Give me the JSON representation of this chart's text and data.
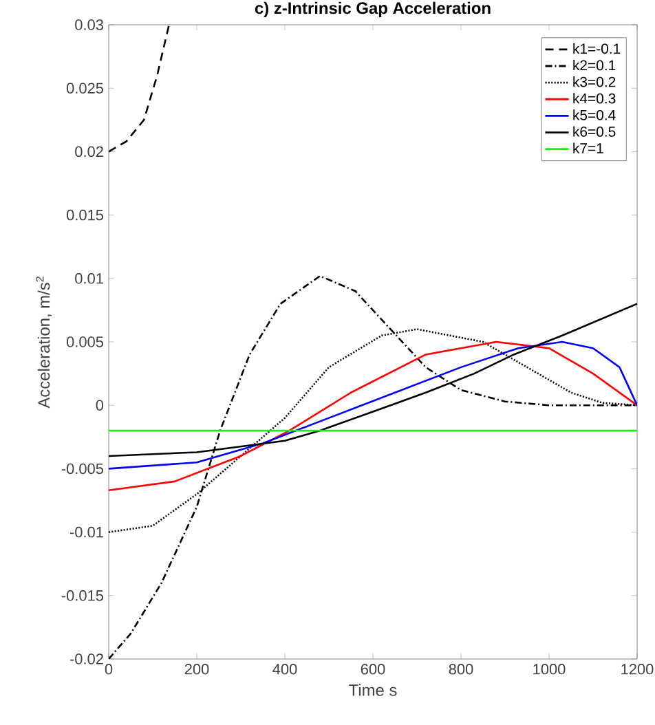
{
  "chart_data": {
    "type": "line",
    "title": "c) z-Intrinsic Gap Acceleration",
    "xlabel": "Time s",
    "ylabel": "Acceleration, m/s$^{2}$",
    "xlim": [
      0,
      1200
    ],
    "ylim": [
      -0.02,
      0.03
    ],
    "xticks": [
      0,
      200,
      400,
      600,
      800,
      1000,
      1200
    ],
    "yticks": [
      -0.02,
      -0.015,
      -0.01,
      -0.005,
      0,
      0.005,
      0.01,
      0.015,
      0.02,
      0.025,
      0.03
    ],
    "legend": "top right",
    "grid": false,
    "marker": "none",
    "series": [
      {
        "name": "k1=-0.1",
        "color": "#000000",
        "line_style": "dashed",
        "x": [
          0,
          40,
          80,
          110,
          137
        ],
        "values": [
          0.02,
          0.0208,
          0.0225,
          0.026,
          0.03
        ]
      },
      {
        "name": "k2=0.1",
        "color": "#000000",
        "line_style": "dashdot",
        "x": [
          0,
          50,
          120,
          200,
          253,
          320,
          390,
          480,
          560,
          640,
          720,
          800,
          900,
          1000,
          1200
        ],
        "values": [
          -0.02,
          -0.018,
          -0.014,
          -0.008,
          -0.002,
          0.004,
          0.008,
          0.0102,
          0.009,
          0.006,
          0.003,
          0.0012,
          0.0003,
          0,
          0
        ]
      },
      {
        "name": "k3=0.2",
        "color": "#000000",
        "line_style": "dotted",
        "x": [
          0,
          100,
          200,
          300,
          400,
          500,
          620,
          700,
          850,
          950,
          1050,
          1120,
          1200
        ],
        "values": [
          -0.01,
          -0.0095,
          -0.007,
          -0.004,
          -0.001,
          0.003,
          0.0055,
          0.006,
          0.005,
          0.003,
          0.001,
          0.0002,
          0
        ]
      },
      {
        "name": "k4=0.3",
        "color": "#ff0000",
        "line_style": "solid",
        "x": [
          0,
          150,
          300,
          410,
          550,
          720,
          880,
          1000,
          1100,
          1200
        ],
        "values": [
          -0.0067,
          -0.006,
          -0.004,
          -0.002,
          0.001,
          0.004,
          0.005,
          0.0045,
          0.0025,
          0
        ]
      },
      {
        "name": "k5=0.4",
        "color": "#0000ff",
        "line_style": "solid",
        "x": [
          0,
          200,
          350,
          500,
          650,
          800,
          930,
          1030,
          1100,
          1160,
          1200
        ],
        "values": [
          -0.005,
          -0.0045,
          -0.003,
          -0.001,
          0.001,
          0.003,
          0.0045,
          0.005,
          0.0045,
          0.003,
          0
        ]
      },
      {
        "name": "k6=0.5",
        "color": "#000000",
        "line_style": "solid",
        "x": [
          0,
          200,
          400,
          480,
          600,
          720,
          830,
          920,
          1030,
          1200
        ],
        "values": [
          -0.004,
          -0.0037,
          -0.0028,
          -0.002,
          -0.0005,
          0.001,
          0.0025,
          0.004,
          0.0055,
          0.008
        ]
      },
      {
        "name": "k7=1",
        "color": "#00ff00",
        "line_style": "solid",
        "x": [
          0,
          1200
        ],
        "values": [
          -0.002,
          -0.002
        ]
      }
    ]
  }
}
